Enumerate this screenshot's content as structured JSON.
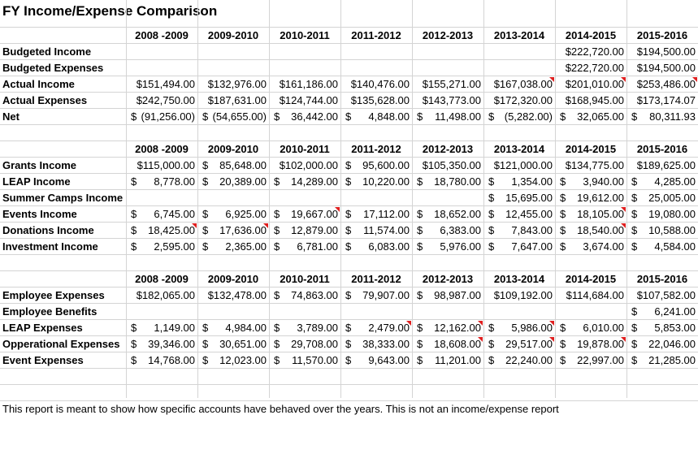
{
  "title": "FY Income/Expense Comparison",
  "years": [
    "2008 -2009",
    "2009-2010",
    "2010-2011",
    "2011-2012",
    "2012-2013",
    "2013-2014",
    "2014-2015",
    "2015-2016"
  ],
  "section1": {
    "rows": [
      {
        "label": "Budgeted Income",
        "values": [
          "",
          "",
          "",
          "",
          "",
          "",
          "$222,720.00",
          "$194,500.00"
        ]
      },
      {
        "label": "Budgeted Expenses",
        "values": [
          "",
          "",
          "",
          "",
          "",
          "",
          "$222,720.00",
          "$194,500.00"
        ]
      },
      {
        "label": "Actual Income",
        "values": [
          "$151,494.00",
          "$132,976.00",
          "$161,186.00",
          "$140,476.00",
          "$155,271.00",
          "$167,038.00",
          "$201,010.00",
          "$253,486.00"
        ]
      },
      {
        "label": "Actual Expenses",
        "values": [
          "$242,750.00",
          "$187,631.00",
          "$124,744.00",
          "$135,628.00",
          "$143,773.00",
          "$172,320.00",
          "$168,945.00",
          "$173,174.07"
        ]
      },
      {
        "label": "Net",
        "values": [
          "$ (91,256.00)",
          "$ (54,655.00)",
          "$ 36,442.00",
          "$ 4,848.00",
          "$ 11,498.00",
          "$ (5,282.00)",
          "$ 32,065.00",
          "$ 80,311.93"
        ]
      }
    ]
  },
  "section2": {
    "rows": [
      {
        "label": "Grants Income",
        "values": [
          "$115,000.00",
          "$ 85,648.00",
          "$102,000.00",
          "$ 95,600.00",
          "$105,350.00",
          "$121,000.00",
          "$134,775.00",
          "$189,625.00"
        ]
      },
      {
        "label": "LEAP Income",
        "values": [
          "$ 8,778.00",
          "$ 20,389.00",
          "$ 14,289.00",
          "$ 10,220.00",
          "$ 18,780.00",
          "$ 1,354.00",
          "$ 3,940.00",
          "$ 4,285.00"
        ]
      },
      {
        "label": "Summer Camps Income",
        "values": [
          "",
          "",
          "",
          "",
          "",
          "$ 15,695.00",
          "$ 19,612.00",
          "$ 25,005.00"
        ]
      },
      {
        "label": "Events Income",
        "values": [
          "$ 6,745.00",
          "$ 6,925.00",
          "$ 19,667.00",
          "$ 17,112.00",
          "$ 18,652.00",
          "$ 12,455.00",
          "$ 18,105.00",
          "$ 19,080.00"
        ]
      },
      {
        "label": "Donations Income",
        "values": [
          "$ 18,425.00",
          "$ 17,636.00",
          "$ 12,879.00",
          "$ 11,574.00",
          "$ 6,383.00",
          "$ 7,843.00",
          "$ 18,540.00",
          "$ 10,588.00"
        ]
      },
      {
        "label": "Investment Income",
        "values": [
          "$ 2,595.00",
          "$ 2,365.00",
          "$ 6,781.00",
          "$ 6,083.00",
          "$ 5,976.00",
          "$ 7,647.00",
          "$ 3,674.00",
          "$ 4,584.00"
        ]
      }
    ]
  },
  "section3": {
    "rows": [
      {
        "label": "Employee Expenses",
        "values": [
          "$182,065.00",
          "$132,478.00",
          "$ 74,863.00",
          "$ 79,907.00",
          "$ 98,987.00",
          "$109,192.00",
          "$114,684.00",
          "$107,582.00"
        ]
      },
      {
        "label": "Employee Benefits",
        "values": [
          "",
          "",
          "",
          "",
          "",
          "",
          "",
          "$ 6,241.00"
        ]
      },
      {
        "label": "LEAP Expenses",
        "values": [
          "$ 1,149.00",
          "$ 4,984.00",
          "$ 3,789.00",
          "$ 2,479.00",
          "$ 12,162.00",
          "$ 5,986.00",
          "$ 6,010.00",
          "$ 5,853.00"
        ]
      },
      {
        "label": "Opperational Expenses",
        "values": [
          "$ 39,346.00",
          "$ 30,651.00",
          "$ 29,708.00",
          "$ 38,333.00",
          "$ 18,608.00",
          "$ 29,517.00",
          "$ 19,878.00",
          "$ 22,046.00"
        ]
      },
      {
        "label": "Event Expenses",
        "values": [
          "$ 14,768.00",
          "$ 12,023.00",
          "$ 11,570.00",
          "$ 9,643.00",
          "$ 11,201.00",
          "$ 22,240.00",
          "$ 22,997.00",
          "$ 21,285.00"
        ]
      }
    ]
  },
  "note": "This report is meant to show how specific accounts have behaved over the years.  This is not an income/expense report",
  "colors": {
    "gridline": "#d4d4d4",
    "comment_marker": "#e02020"
  }
}
